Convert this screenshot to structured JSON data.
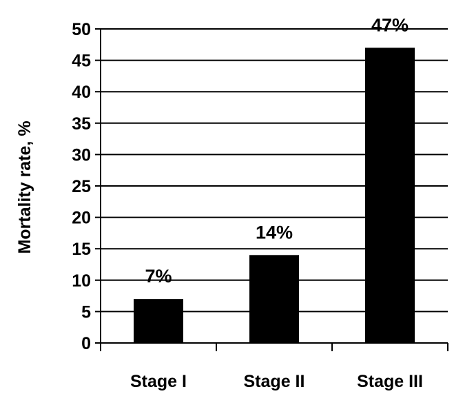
{
  "chart_data": {
    "type": "bar",
    "title": "",
    "xlabel": "",
    "ylabel": "Mortality rate, %",
    "categories": [
      "Stage I",
      "Stage II",
      "Stage III"
    ],
    "values": [
      7,
      14,
      47
    ],
    "data_labels": [
      "7%",
      "14%",
      "47%"
    ],
    "ylim": [
      0,
      50
    ],
    "yticks": [
      0,
      5,
      10,
      15,
      20,
      25,
      30,
      35,
      40,
      45,
      50
    ],
    "grid": true,
    "legend": "none",
    "bar_color": "#000000",
    "grid_color": "#000000"
  }
}
